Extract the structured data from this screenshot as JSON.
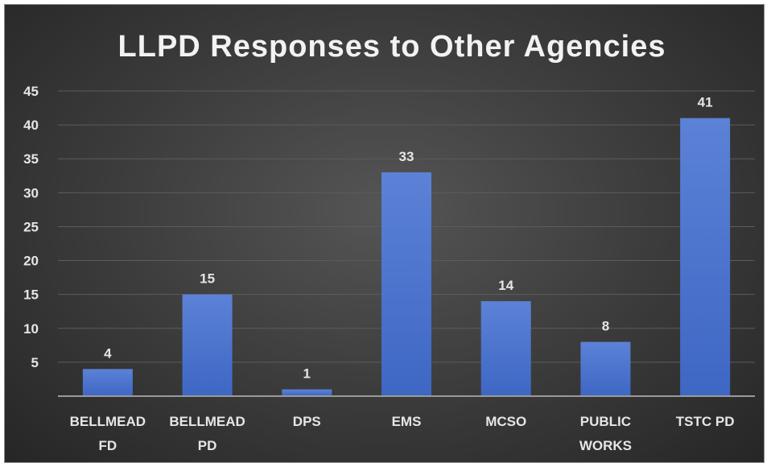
{
  "chart_data": {
    "type": "bar",
    "title": "LLPD Responses to Other Agencies",
    "categories": [
      [
        "BELLMEAD",
        "FD"
      ],
      [
        "BELLMEAD",
        "PD"
      ],
      [
        "DPS"
      ],
      [
        "EMS"
      ],
      [
        "MCSO"
      ],
      [
        "PUBLIC",
        "WORKS"
      ],
      [
        "TSTC PD"
      ]
    ],
    "values": [
      4,
      15,
      1,
      33,
      14,
      8,
      41
    ],
    "data_labels": [
      "4",
      "15",
      "1",
      "33",
      "14",
      "8",
      "41"
    ],
    "ylim": [
      0,
      45
    ],
    "yticks": [
      "5",
      "10",
      "15",
      "20",
      "25",
      "30",
      "35",
      "40",
      "45"
    ],
    "ytick_values": [
      5,
      10,
      15,
      20,
      25,
      30,
      35,
      40,
      45
    ],
    "grid": true,
    "legend": "none",
    "colors": {
      "bar_top": "#5b82d6",
      "bar_bottom": "#3e67c4",
      "text": "#e6e6e6"
    }
  }
}
